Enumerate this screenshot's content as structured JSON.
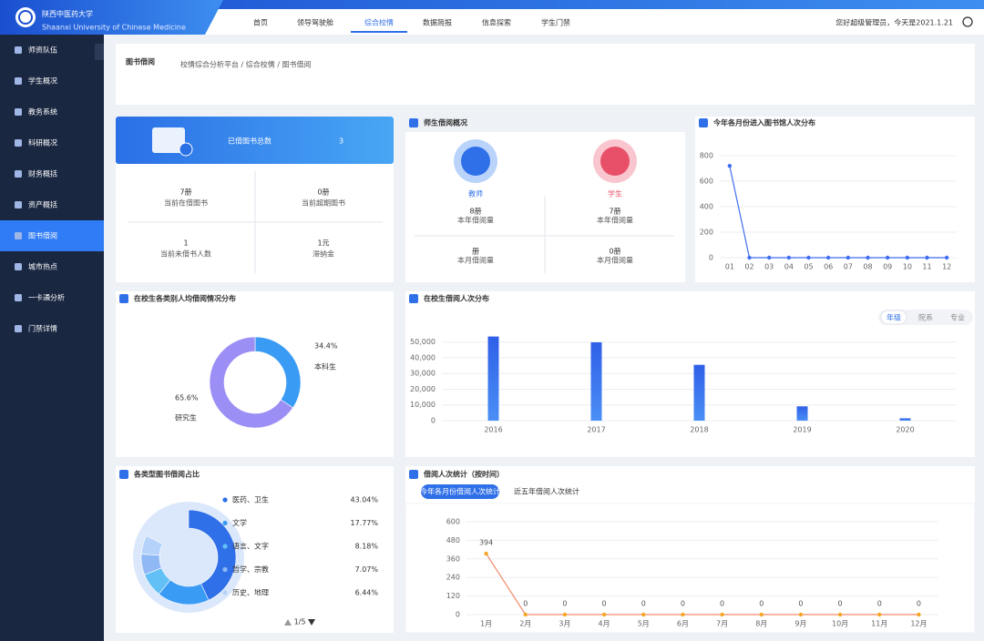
{
  "header": {
    "school_name": "陕西中医药大学",
    "school_name_en": "Shaanxi University of Chinese Medicine",
    "nav": [
      "首页",
      "领导驾驶舱",
      "综合校情",
      "数据简报",
      "信息探索",
      "学生门禁"
    ],
    "active_nav": 2,
    "greeting": "您好超级管理员，今天是2021.1.21"
  },
  "sidebar": {
    "items": [
      "师资队伍",
      "学生概况",
      "教务系统",
      "科研概况",
      "财务概括",
      "资产概括",
      "图书借阅",
      "城市热点",
      "一卡通分析",
      "门禁详情"
    ],
    "active": 6
  },
  "page": {
    "title": "图书借阅",
    "breadcrumb": "校情综合分析平台 / 综合校情 / 图书借阅"
  },
  "summary": {
    "title": "已借图书总数",
    "value": "3",
    "stats": [
      {
        "value": "7册",
        "label": "当前在借图书"
      },
      {
        "value": "0册",
        "label": "当前超期图书"
      },
      {
        "value": "1",
        "label": "当前未借书人数"
      },
      {
        "value": "1元",
        "label": "滞纳金"
      }
    ]
  },
  "overview": {
    "title": "师生借阅概况",
    "groups": [
      {
        "name": "教师",
        "stats": [
          {
            "value": "8册",
            "label": "本年借阅量"
          },
          {
            "value": "册",
            "label": "本月借阅量"
          }
        ]
      },
      {
        "name": "学生",
        "stats": [
          {
            "value": "7册",
            "label": "本年借阅量"
          },
          {
            "value": "0册",
            "label": "本月借阅量"
          }
        ]
      }
    ]
  },
  "chart_data": [
    {
      "type": "line",
      "title": "今年各月份进入图书馆人次分布",
      "categories": [
        "01",
        "02",
        "03",
        "04",
        "05",
        "06",
        "07",
        "08",
        "09",
        "10",
        "11",
        "12"
      ],
      "values": [
        720,
        0,
        0,
        0,
        0,
        0,
        0,
        0,
        0,
        0,
        0,
        0
      ],
      "color": "#3f6ef0",
      "ylim": [
        0,
        800
      ],
      "yticks": [
        0,
        200,
        400,
        600,
        800
      ],
      "grid": true
    },
    {
      "type": "pie",
      "title": "在校生各类别人均借阅情况分布",
      "categories": [
        "本科生",
        "研究生"
      ],
      "values": [
        34.4,
        65.6
      ],
      "value_labels": [
        "34.4%",
        "65.6%"
      ],
      "colors": [
        "#3a9bf5",
        "#9b8ff5"
      ]
    },
    {
      "type": "bar",
      "title": "在校生借阅人次分布",
      "toggles": [
        "年级",
        "院系",
        "专业"
      ],
      "active_toggle": 0,
      "categories": [
        "2016",
        "2017",
        "2018",
        "2019",
        "2020"
      ],
      "values": [
        53500,
        49800,
        35500,
        9100,
        1500
      ],
      "color": "#2f6fe8",
      "ylim": [
        0,
        55000
      ],
      "yticks": [
        0,
        {
          "value": 10000,
          "label": "10,000"
        },
        {
          "value": 20000,
          "label": "20,000"
        },
        {
          "value": 30000,
          "label": "30,000"
        },
        {
          "value": 40000,
          "label": "40,000"
        },
        {
          "value": 50000,
          "label": "50,000"
        }
      ],
      "grid": true
    },
    {
      "type": "pie",
      "title": "各类型图书借阅占比",
      "pager": "1/5",
      "categories": [
        "医药、卫生",
        "文学",
        "语言、文字",
        "哲学、宗教",
        "历史、地理"
      ],
      "values": [
        43.04,
        17.77,
        8.18,
        7.07,
        6.44
      ],
      "value_labels": [
        "43.04%",
        "17.77%",
        "8.18%",
        "7.07%",
        "6.44%"
      ],
      "colors": [
        "#2f6fe8",
        "#3a9bf5",
        "#62c0f7",
        "#8fb8f5",
        "#b5d3fa"
      ]
    },
    {
      "type": "line",
      "title": "借阅人次统计（按时间）",
      "tabs": [
        "今年各月份借阅人次统计",
        "近五年借阅人次统计"
      ],
      "active_tab": 0,
      "categories": [
        "1月",
        "2月",
        "3月",
        "4月",
        "5月",
        "6月",
        "7月",
        "8月",
        "9月",
        "10月",
        "11月",
        "12月"
      ],
      "values": [
        394,
        0,
        0,
        0,
        0,
        0,
        0,
        0,
        0,
        0,
        0,
        0
      ],
      "color": "#f08a6c",
      "data_labels": true,
      "ylim": [
        0,
        600
      ],
      "yticks": [
        0,
        120,
        240,
        360,
        480,
        600
      ],
      "grid": true
    }
  ]
}
